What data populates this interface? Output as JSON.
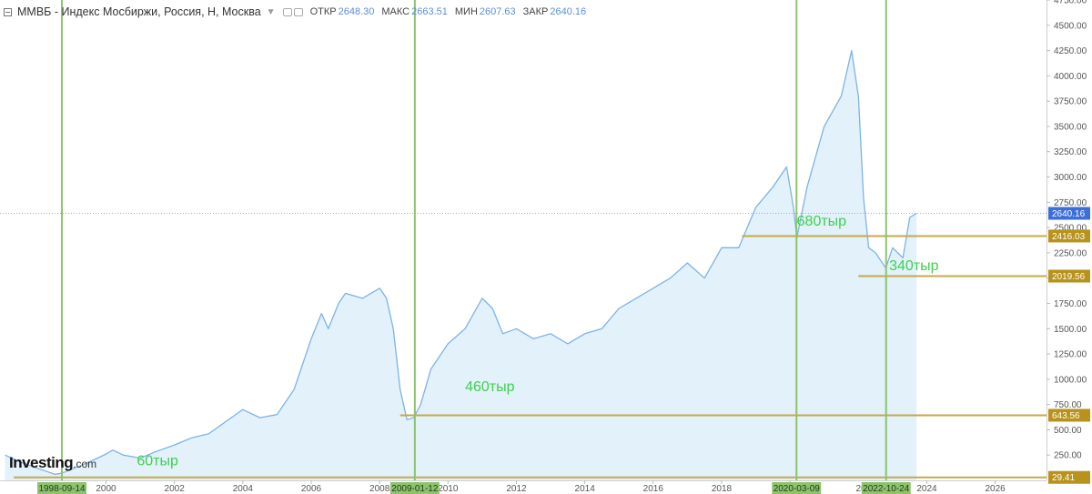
{
  "header": {
    "title": "ММВБ - Индекс Мосбиржи, Россия, Н, Москва",
    "open_label": "ОТКР",
    "open_value": "2648.30",
    "high_label": "МАКС",
    "high_value": "2663.51",
    "low_label": "МИН",
    "low_value": "2607.63",
    "close_label": "ЗАКР",
    "close_value": "2640.16"
  },
  "logo": {
    "brand": "Investing",
    "suffix": ".com"
  },
  "colors": {
    "line": "#7eb3e5",
    "area": "#e3f1fb",
    "vline": "#8dc36e",
    "hline": "#c3a94a",
    "hline_label_bg": "#b8921a",
    "price_label_bg": "#3d6fd8",
    "annotation_text": "#3dd14a",
    "grid": "#eaeaea"
  },
  "chart_data": {
    "type": "area",
    "title": "ММВБ - Индекс Мосбиржи, Россия, Н, Москва",
    "ylim": [
      0,
      4750
    ],
    "xlim": [
      1996.9,
      2027.5
    ],
    "y_ticks": [
      250,
      500,
      750,
      1000,
      1250,
      1500,
      1750,
      2000,
      2250,
      2500,
      2750,
      3000,
      3250,
      3500,
      3750,
      4000,
      4250,
      4500,
      4750
    ],
    "x_tick_labels": [
      "2000",
      "2002",
      "2004",
      "2006",
      "2008",
      "2010",
      "2012",
      "2014",
      "2016",
      "2018",
      "2020",
      "2024",
      "2026"
    ],
    "x_tick_values": [
      2000,
      2002,
      2004,
      2006,
      2008,
      2010,
      2012,
      2014,
      2016,
      2018,
      2020,
      2024,
      2026
    ],
    "x_partial_tick_labels": [
      "19",
      "20"
    ],
    "series": [
      {
        "x": [
          1997.05,
          1997.5,
          1998.0,
          1998.5,
          1998.7,
          1999.0,
          1999.5,
          2000.0,
          2000.2,
          2000.5,
          2001.0,
          2001.5,
          2002.0,
          2002.5,
          2003.0,
          2003.5,
          2004.0,
          2004.5,
          2005.0,
          2005.5,
          2006.0,
          2006.3,
          2006.5,
          2006.8,
          2007.0,
          2007.5,
          2008.0,
          2008.2,
          2008.4,
          2008.6,
          2008.8,
          2009.0,
          2009.2,
          2009.5,
          2010.0,
          2010.5,
          2011.0,
          2011.3,
          2011.6,
          2012.0,
          2012.5,
          2013.0,
          2013.5,
          2014.0,
          2014.5,
          2015.0,
          2015.5,
          2016.0,
          2016.5,
          2017.0,
          2017.5,
          2018.0,
          2018.5,
          2019.0,
          2019.5,
          2019.9,
          2020.1,
          2020.2,
          2020.5,
          2021.0,
          2021.5,
          2021.8,
          2022.0,
          2022.15,
          2022.3,
          2022.5,
          2022.8,
          2023.0,
          2023.3,
          2023.5,
          2023.7
        ],
        "y": [
          250,
          180,
          120,
          60,
          70,
          110,
          180,
          260,
          300,
          250,
          220,
          290,
          350,
          420,
          460,
          580,
          700,
          620,
          650,
          900,
          1400,
          1650,
          1500,
          1750,
          1850,
          1800,
          1900,
          1800,
          1500,
          900,
          600,
          620,
          750,
          1100,
          1350,
          1500,
          1800,
          1700,
          1450,
          1500,
          1400,
          1450,
          1350,
          1450,
          1500,
          1700,
          1800,
          1900,
          2000,
          2150,
          2000,
          2300,
          2300,
          2700,
          2900,
          3100,
          2700,
          2400,
          2900,
          3500,
          3800,
          4250,
          3800,
          2800,
          2300,
          2250,
          2100,
          2300,
          2200,
          2600,
          2640
        ]
      }
    ],
    "current_price": 2640.16,
    "horizontal_levels": [
      {
        "value": 2416.03,
        "label": "2416.03",
        "x_start": 2018.6
      },
      {
        "value": 2019.56,
        "label": "2019.56",
        "x_start": 2022.0
      },
      {
        "value": 643.56,
        "label": "643.56",
        "x_start": 2008.6
      },
      {
        "value": 29.41,
        "label": "29.41",
        "x_start": 1997.3
      }
    ],
    "vertical_markers": [
      {
        "x": 1998.71,
        "label": "1998-09-14"
      },
      {
        "x": 2009.03,
        "label": "2009-01-12"
      },
      {
        "x": 2020.19,
        "label": "2020-03-09"
      },
      {
        "x": 2022.81,
        "label": "2022-10-24"
      }
    ],
    "annotations": [
      {
        "text": "60тыр",
        "x": 2000.9,
        "y": 150
      },
      {
        "text": "460тыр",
        "x": 2010.5,
        "y": 880
      },
      {
        "text": "680тыр",
        "x": 2020.2,
        "y": 2520
      },
      {
        "text": "340тыр",
        "x": 2022.9,
        "y": 2080
      }
    ]
  }
}
